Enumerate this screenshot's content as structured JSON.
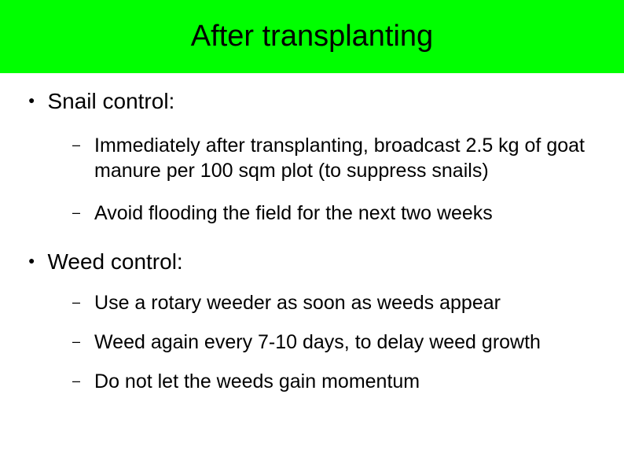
{
  "title": "After transplanting",
  "colors": {
    "title_bg": "#00ff00",
    "title_text": "#000000",
    "body_text": "#000000",
    "slide_bg": "#ffffff"
  },
  "typography": {
    "title_fontsize_pt": 28,
    "level1_fontsize_pt": 21,
    "level2_fontsize_pt": 19,
    "font_family": "Arial"
  },
  "sections": [
    {
      "heading": "Snail control:",
      "items": [
        "Immediately after transplanting, broadcast 2.5 kg of goat manure per 100 sqm plot (to suppress snails)",
        "Avoid flooding the field for the next two weeks"
      ]
    },
    {
      "heading": "Weed control:",
      "items": [
        "Use a rotary weeder as soon as weeds appear",
        "Weed again every 7-10 days, to delay weed growth",
        "Do not let the weeds gain momentum"
      ]
    }
  ],
  "bullet_chars": {
    "level1": "●",
    "level2": "–"
  }
}
